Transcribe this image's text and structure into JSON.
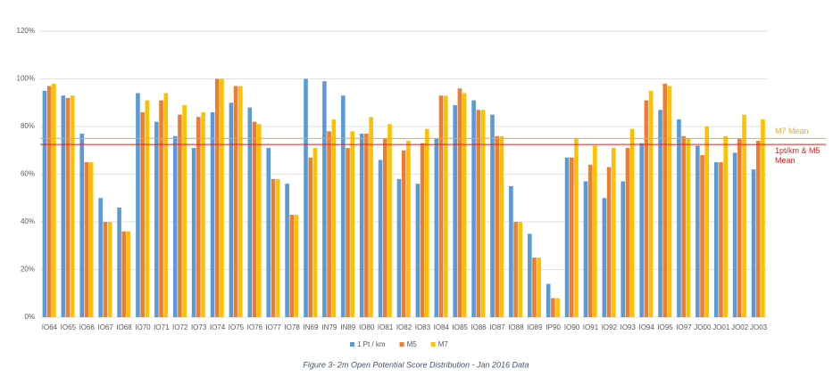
{
  "chart_data": {
    "type": "bar",
    "caption": "Figure 3- 2m Open Potential Score Distribution - Jan 2016 Data",
    "categories": [
      "IO64",
      "IO65",
      "IO66",
      "IO67",
      "IO68",
      "IO70",
      "IO71",
      "IO72",
      "IO73",
      "IO74",
      "IO75",
      "IO76",
      "IO77",
      "IO78",
      "IN69",
      "IN79",
      "IN89",
      "IO80",
      "IO81",
      "IO82",
      "IO83",
      "IO84",
      "IO85",
      "IO86",
      "IO87",
      "IO88",
      "IO89",
      "IP90",
      "IO90",
      "IO91",
      "IO92",
      "IO93",
      "IO94",
      "IO95",
      "IO97",
      "JO00",
      "JO01",
      "JO02",
      "JO03"
    ],
    "series": [
      {
        "name": "1 Pt / km",
        "color": "#5b9bd5",
        "values": [
          95,
          93,
          77,
          50,
          46,
          94,
          82,
          76,
          71,
          86,
          90,
          88,
          71,
          56,
          100,
          99,
          93,
          77,
          66,
          58,
          56,
          75,
          89,
          91,
          85,
          55,
          35,
          14,
          67,
          57,
          50,
          57,
          73,
          87,
          83,
          72,
          65,
          69,
          62
        ]
      },
      {
        "name": "M5",
        "color": "#ed7d31",
        "values": [
          97,
          92,
          65,
          40,
          36,
          86,
          91,
          85,
          84,
          100,
          97,
          82,
          58,
          43,
          67,
          78,
          71,
          77,
          75,
          70,
          73,
          93,
          96,
          87,
          76,
          40,
          25,
          8,
          67,
          64,
          63,
          71,
          91,
          98,
          76,
          68,
          65,
          75,
          74
        ]
      },
      {
        "name": "M7",
        "color": "#ffc000",
        "values": [
          98,
          93,
          65,
          40,
          36,
          91,
          94,
          89,
          86,
          100,
          97,
          81,
          58,
          43,
          71,
          83,
          78,
          84,
          81,
          74,
          79,
          93,
          94,
          87,
          76,
          40,
          25,
          8,
          75,
          72,
          71,
          79,
          95,
          97,
          75,
          80,
          76,
          85,
          83
        ]
      }
    ],
    "reference_lines": [
      {
        "label": "M7 Mean",
        "value": 75,
        "color": "#f0a830"
      },
      {
        "label": "1pt/km & M5 Mean",
        "value": 72.5,
        "color": "#e02020"
      }
    ],
    "ylim": [
      0,
      120
    ],
    "yticks": [
      {
        "value": 0,
        "label": "0%"
      },
      {
        "value": 20,
        "label": "20%"
      },
      {
        "value": 40,
        "label": "40%"
      },
      {
        "value": 60,
        "label": "60%"
      },
      {
        "value": 80,
        "label": "80%"
      },
      {
        "value": 100,
        "label": "100%"
      },
      {
        "value": 120,
        "label": "120%"
      }
    ],
    "grid": true
  }
}
